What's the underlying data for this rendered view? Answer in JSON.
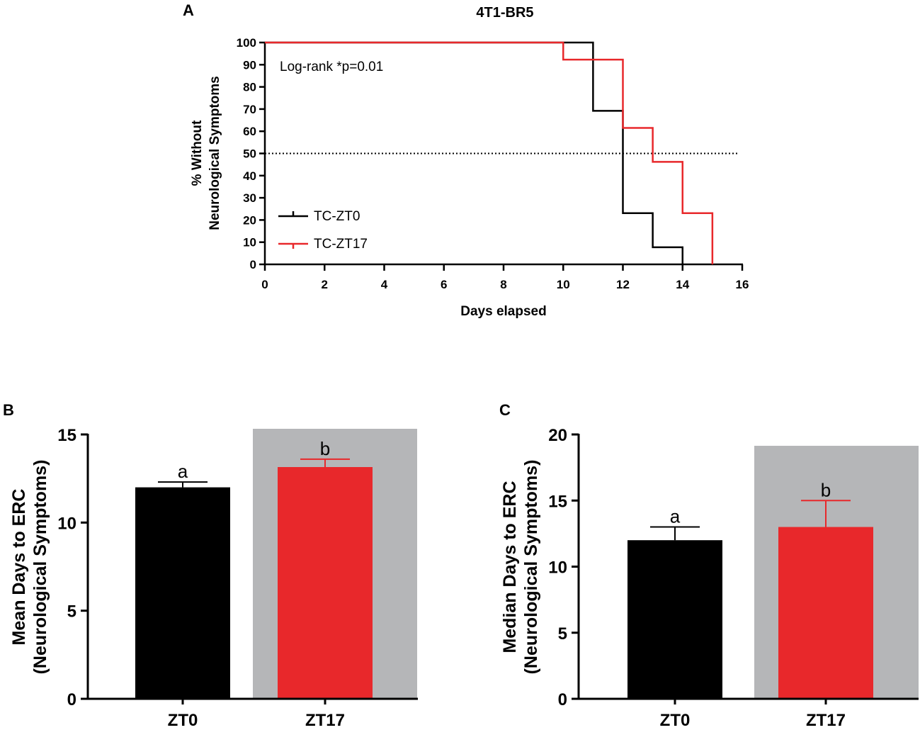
{
  "figure": {
    "panel_a_letter": "A",
    "panel_b_letter": "B",
    "panel_c_letter": "C"
  },
  "chart_data": [
    {
      "type": "line",
      "subtype": "kaplan-meier step",
      "title": "4T1-BR5",
      "xlabel": "Days elapsed",
      "ylabel_line1": "% Without",
      "ylabel_line2": "Neurological Symptoms",
      "xlim": [
        0,
        16
      ],
      "ylim": [
        0,
        100
      ],
      "xticks": [
        0,
        2,
        4,
        6,
        8,
        10,
        12,
        14,
        16
      ],
      "yticks": [
        0,
        10,
        20,
        30,
        40,
        50,
        60,
        70,
        80,
        90,
        100
      ],
      "reference_line": {
        "y": 50,
        "style": "dotted"
      },
      "annotation": "Log-rank *p=0.01",
      "legend_position": "lower-left",
      "series": [
        {
          "name": "TC-ZT0",
          "color": "#000000",
          "x": [
            0,
            11,
            12,
            13,
            14
          ],
          "y": [
            100,
            69.2,
            23.1,
            7.7,
            0
          ]
        },
        {
          "name": "TC-ZT17",
          "color": "#e8282b",
          "x": [
            0,
            10,
            12,
            13,
            14,
            15
          ],
          "y": [
            100,
            92.3,
            61.5,
            46.2,
            23.1,
            0
          ]
        }
      ]
    },
    {
      "type": "bar",
      "ylabel_line1": "Mean Days to ERC",
      "ylabel_line2": "(Neurological Symptoms)",
      "ylim": [
        0,
        15
      ],
      "yticks": [
        0,
        5,
        10,
        15
      ],
      "categories": [
        "ZT0",
        "ZT17"
      ],
      "values": [
        12.0,
        13.15
      ],
      "errors": [
        0.3,
        0.45
      ],
      "colors": [
        "#000000",
        "#e8282b"
      ],
      "significance": [
        "a",
        "b"
      ],
      "shaded_category": "ZT17",
      "shade_color": "#b5b6b8"
    },
    {
      "type": "bar",
      "ylabel_line1": "Median Days to ERC",
      "ylabel_line2": "(Neurological Symptoms)",
      "ylim": [
        0,
        20
      ],
      "yticks": [
        0,
        5,
        10,
        15,
        20
      ],
      "categories": [
        "ZT0",
        "ZT17"
      ],
      "values": [
        12,
        13
      ],
      "errors": [
        1,
        2
      ],
      "colors": [
        "#000000",
        "#e8282b"
      ],
      "significance": [
        "a",
        "b"
      ],
      "shaded_category": "ZT17",
      "shade_color": "#b5b6b8"
    }
  ]
}
